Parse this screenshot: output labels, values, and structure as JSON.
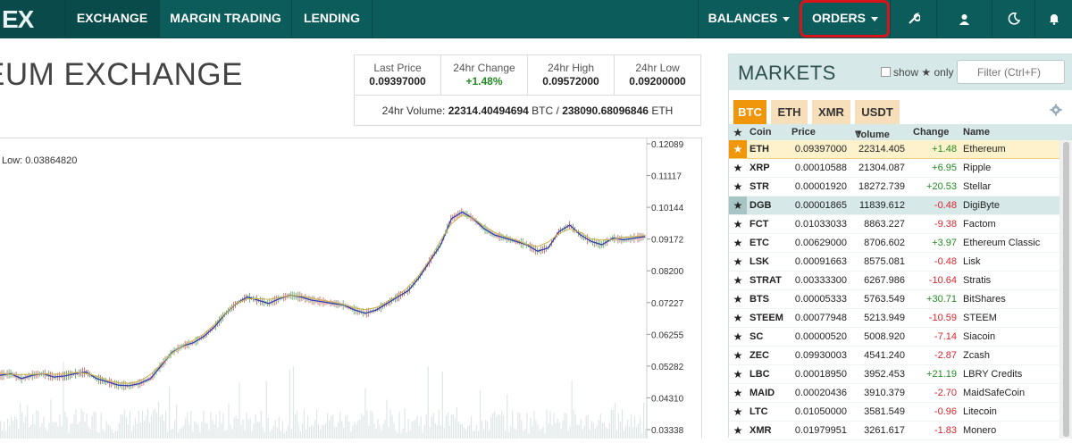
{
  "nav": {
    "logo": "EX",
    "items": [
      {
        "label": "EXCHANGE",
        "active": true
      },
      {
        "label": "MARGIN TRADING"
      },
      {
        "label": "LENDING"
      }
    ],
    "right_items": [
      {
        "label": "BALANCES"
      },
      {
        "label": "ORDERS"
      }
    ],
    "icons": [
      "wrench-icon",
      "user-icon",
      "moon-icon",
      "bell-icon"
    ]
  },
  "page": {
    "title": "EUM EXCHANGE"
  },
  "stats": {
    "last_price_label": "Last Price",
    "last_price": "0.09397000",
    "change_label": "24hr Change",
    "change": "+1.48%",
    "high_label": "24hr High",
    "high": "0.09572000",
    "low_label": "24hr Low",
    "low": "0.09200000",
    "volume_label": "24hr Volume:",
    "volume_btc": "22314.40494694",
    "btc_unit": "BTC /",
    "volume_eth": "238090.68096846",
    "eth_unit": "ETH"
  },
  "chart": {
    "low_label": "Low: 0.03864820",
    "y_ticks": [
      "0.12089",
      "0.11117",
      "0.10144",
      "0.09172",
      "0.08200",
      "0.07227",
      "0.06255",
      "0.05282",
      "0.04310",
      "0.03338"
    ]
  },
  "chart_data": {
    "type": "line",
    "title": "",
    "xlabel": "",
    "ylabel": "",
    "ylim": [
      0.03338,
      0.12089
    ],
    "series": [
      {
        "values": [
          0.05,
          0.0505,
          0.049,
          0.05,
          0.0505,
          0.0495,
          0.0498,
          0.0505,
          0.051,
          0.049,
          0.048,
          0.047,
          0.0468,
          0.0475,
          0.049,
          0.053,
          0.057,
          0.059,
          0.06,
          0.062,
          0.065,
          0.069,
          0.072,
          0.074,
          0.073,
          0.072,
          0.0735,
          0.0745,
          0.074,
          0.073,
          0.0725,
          0.072,
          0.0715,
          0.07,
          0.069,
          0.07,
          0.072,
          0.074,
          0.076,
          0.08,
          0.085,
          0.09,
          0.098,
          0.1,
          0.098,
          0.095,
          0.093,
          0.092,
          0.091,
          0.09,
          0.088,
          0.089,
          0.094,
          0.096,
          0.093,
          0.091,
          0.09,
          0.092,
          0.0915,
          0.092,
          0.0925
        ]
      }
    ]
  },
  "markets": {
    "title": "MARKETS",
    "show_label": "show",
    "only_label": "only",
    "filter_placeholder": "Filter (Ctrl+F)",
    "tabs": [
      "BTC",
      "ETH",
      "XMR",
      "USDT"
    ],
    "columns": [
      "Coin",
      "Price",
      "Volume",
      "Change",
      "Name"
    ],
    "rows": [
      {
        "coin": "ETH",
        "price": "0.09397000",
        "volume": "22314.405",
        "change": "+1.48",
        "dir": "pos",
        "name": "Ethereum",
        "state": "sel"
      },
      {
        "coin": "XRP",
        "price": "0.00010588",
        "volume": "21304.087",
        "change": "+6.95",
        "dir": "pos",
        "name": "Ripple"
      },
      {
        "coin": "STR",
        "price": "0.00001920",
        "volume": "18272.739",
        "change": "+20.53",
        "dir": "pos",
        "name": "Stellar"
      },
      {
        "coin": "DGB",
        "price": "0.00001865",
        "volume": "11839.612",
        "change": "-0.48",
        "dir": "neg",
        "name": "DigiByte",
        "state": "hl"
      },
      {
        "coin": "FCT",
        "price": "0.01033033",
        "volume": "8863.227",
        "change": "-9.38",
        "dir": "neg",
        "name": "Factom"
      },
      {
        "coin": "ETC",
        "price": "0.00629000",
        "volume": "8706.602",
        "change": "+3.97",
        "dir": "pos",
        "name": "Ethereum Classic"
      },
      {
        "coin": "LSK",
        "price": "0.00091663",
        "volume": "8575.081",
        "change": "-0.48",
        "dir": "neg",
        "name": "Lisk"
      },
      {
        "coin": "STRAT",
        "price": "0.00333300",
        "volume": "6267.986",
        "change": "-10.64",
        "dir": "neg",
        "name": "Stratis"
      },
      {
        "coin": "BTS",
        "price": "0.00005333",
        "volume": "5763.549",
        "change": "+30.71",
        "dir": "pos",
        "name": "BitShares"
      },
      {
        "coin": "STEEM",
        "price": "0.00077948",
        "volume": "5213.949",
        "change": "-10.59",
        "dir": "neg",
        "name": "STEEM"
      },
      {
        "coin": "SC",
        "price": "0.00000520",
        "volume": "5008.920",
        "change": "-7.14",
        "dir": "neg",
        "name": "Siacoin"
      },
      {
        "coin": "ZEC",
        "price": "0.09930003",
        "volume": "4541.240",
        "change": "-2.87",
        "dir": "neg",
        "name": "Zcash"
      },
      {
        "coin": "LBC",
        "price": "0.00018950",
        "volume": "3952.453",
        "change": "+21.19",
        "dir": "pos",
        "name": "LBRY Credits"
      },
      {
        "coin": "MAID",
        "price": "0.00020436",
        "volume": "3910.379",
        "change": "-2.70",
        "dir": "neg",
        "name": "MaidSafeCoin"
      },
      {
        "coin": "LTC",
        "price": "0.01050000",
        "volume": "3581.549",
        "change": "-0.96",
        "dir": "neg",
        "name": "Litecoin"
      },
      {
        "coin": "XMR",
        "price": "0.01979951",
        "volume": "3261.617",
        "change": "-1.83",
        "dir": "neg",
        "name": "Monero"
      }
    ]
  },
  "colors": {
    "nav": "#0d5c5c",
    "accent": "#f0960a",
    "positive": "#228b22",
    "negative": "#d8262e",
    "outline": "#d7141a"
  }
}
